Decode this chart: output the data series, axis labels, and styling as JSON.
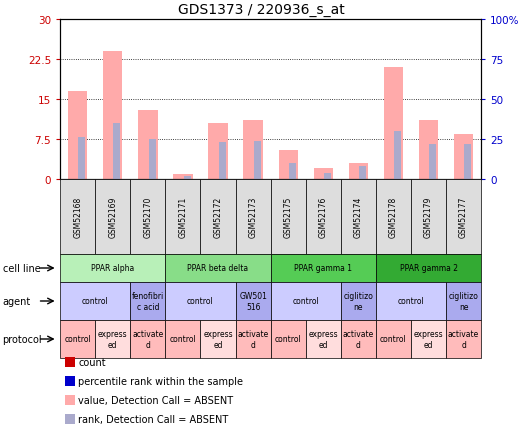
{
  "title": "GDS1373 / 220936_s_at",
  "samples": [
    "GSM52168",
    "GSM52169",
    "GSM52170",
    "GSM52171",
    "GSM52172",
    "GSM52173",
    "GSM52175",
    "GSM52176",
    "GSM52174",
    "GSM52178",
    "GSM52179",
    "GSM52177"
  ],
  "bar_values": [
    16.5,
    24.0,
    13.0,
    1.0,
    10.5,
    11.0,
    5.5,
    2.0,
    3.0,
    21.0,
    11.0,
    8.5
  ],
  "rank_values": [
    26,
    35,
    25,
    2,
    23,
    24,
    10,
    4,
    8,
    30,
    22,
    22
  ],
  "ylim_left": [
    0,
    30
  ],
  "ylim_right": [
    0,
    100
  ],
  "yticks_left": [
    0,
    7.5,
    15,
    22.5,
    30
  ],
  "ytick_labels_left": [
    "0",
    "7.5",
    "15",
    "22.5",
    "30"
  ],
  "yticks_right": [
    0,
    25,
    50,
    75,
    100
  ],
  "ytick_labels_right": [
    "0",
    "25",
    "50",
    "75",
    "100%"
  ],
  "cell_line_groups": [
    {
      "label": "PPAR alpha",
      "start": 0,
      "end": 3,
      "color": "#b8f0b8"
    },
    {
      "label": "PPAR beta delta",
      "start": 3,
      "end": 6,
      "color": "#88dd88"
    },
    {
      "label": "PPAR gamma 1",
      "start": 6,
      "end": 9,
      "color": "#55cc55"
    },
    {
      "label": "PPAR gamma 2",
      "start": 9,
      "end": 12,
      "color": "#33aa33"
    }
  ],
  "agent_groups": [
    {
      "label": "control",
      "start": 0,
      "end": 2,
      "color": "#ccccff"
    },
    {
      "label": "fenofibri\nc acid",
      "start": 2,
      "end": 3,
      "color": "#aaaaee"
    },
    {
      "label": "control",
      "start": 3,
      "end": 5,
      "color": "#ccccff"
    },
    {
      "label": "GW501\n516",
      "start": 5,
      "end": 6,
      "color": "#aaaaee"
    },
    {
      "label": "control",
      "start": 6,
      "end": 8,
      "color": "#ccccff"
    },
    {
      "label": "ciglitizo\nne",
      "start": 8,
      "end": 9,
      "color": "#aaaaee"
    },
    {
      "label": "control",
      "start": 9,
      "end": 11,
      "color": "#ccccff"
    },
    {
      "label": "ciglitizo\nne",
      "start": 11,
      "end": 12,
      "color": "#aaaaee"
    }
  ],
  "protocol_groups": [
    {
      "label": "control",
      "start": 0,
      "end": 1,
      "color": "#ffbbbb"
    },
    {
      "label": "express\ned",
      "start": 1,
      "end": 2,
      "color": "#ffdddd"
    },
    {
      "label": "activate\nd",
      "start": 2,
      "end": 3,
      "color": "#ffbbbb"
    },
    {
      "label": "control",
      "start": 3,
      "end": 4,
      "color": "#ffbbbb"
    },
    {
      "label": "express\ned",
      "start": 4,
      "end": 5,
      "color": "#ffdddd"
    },
    {
      "label": "activate\nd",
      "start": 5,
      "end": 6,
      "color": "#ffbbbb"
    },
    {
      "label": "control",
      "start": 6,
      "end": 7,
      "color": "#ffbbbb"
    },
    {
      "label": "express\ned",
      "start": 7,
      "end": 8,
      "color": "#ffdddd"
    },
    {
      "label": "activate\nd",
      "start": 8,
      "end": 9,
      "color": "#ffbbbb"
    },
    {
      "label": "control",
      "start": 9,
      "end": 10,
      "color": "#ffbbbb"
    },
    {
      "label": "express\ned",
      "start": 10,
      "end": 11,
      "color": "#ffdddd"
    },
    {
      "label": "activate\nd",
      "start": 11,
      "end": 12,
      "color": "#ffbbbb"
    }
  ],
  "bar_color": "#ffaaaa",
  "rank_color": "#aaaacc",
  "bar_width": 0.55,
  "rank_bar_width": 0.2,
  "bg_color": "#ffffff",
  "left_axis_color": "#cc0000",
  "right_axis_color": "#0000cc",
  "sample_bg_color": "#dddddd",
  "legend_items": [
    {
      "color": "#cc0000",
      "label": "count"
    },
    {
      "color": "#0000cc",
      "label": "percentile rank within the sample"
    },
    {
      "color": "#ffaaaa",
      "label": "value, Detection Call = ABSENT"
    },
    {
      "color": "#aaaacc",
      "label": "rank, Detection Call = ABSENT"
    }
  ]
}
